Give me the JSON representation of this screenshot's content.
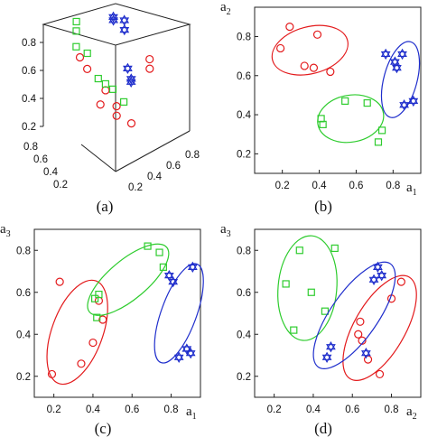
{
  "chart_data": [
    {
      "type": "scatter",
      "panel": "a",
      "projection": "3d",
      "caption": "(a)",
      "axis_ticks": {
        "vertical": [
          "0.8",
          "0.6",
          "0.4",
          "0.2"
        ],
        "left_depth": [
          "0.8",
          "0.6",
          "0.4",
          "0.2"
        ],
        "right_depth": [
          "0.2",
          "0.4",
          "0.6",
          "0.8"
        ]
      },
      "series": [
        {
          "marker": "circle",
          "color": "#e31a1c",
          "points": [
            [
              0.3,
              0.7,
              0.6
            ],
            [
              0.25,
              0.75,
              0.7
            ],
            [
              0.45,
              0.6,
              0.4
            ],
            [
              0.4,
              0.62,
              0.3
            ],
            [
              0.55,
              0.55,
              0.25
            ],
            [
              0.6,
              0.6,
              0.15
            ],
            [
              0.75,
              0.55,
              0.05
            ],
            [
              0.85,
              0.4,
              0.55
            ],
            [
              0.9,
              0.45,
              0.45
            ]
          ]
        },
        {
          "marker": "square",
          "color": "#2ecc2e",
          "points": [
            [
              0.2,
              0.75,
              0.8
            ],
            [
              0.25,
              0.8,
              0.9
            ],
            [
              0.3,
              0.85,
              0.95
            ],
            [
              0.35,
              0.75,
              0.7
            ],
            [
              0.4,
              0.65,
              0.5
            ],
            [
              0.45,
              0.6,
              0.45
            ],
            [
              0.5,
              0.55,
              0.4
            ],
            [
              0.55,
              0.45,
              0.3
            ]
          ]
        },
        {
          "marker": "hexagram",
          "color": "#1f2ecc",
          "points": [
            [
              0.75,
              0.8,
              0.85
            ],
            [
              0.8,
              0.85,
              0.8
            ],
            [
              0.85,
              0.75,
              0.8
            ],
            [
              0.9,
              0.8,
              0.7
            ],
            [
              0.7,
              0.55,
              0.5
            ],
            [
              0.65,
              0.45,
              0.45
            ],
            [
              0.6,
              0.4,
              0.45
            ]
          ]
        }
      ]
    },
    {
      "type": "scatter",
      "panel": "b",
      "caption": "(b)",
      "xlabel": "a",
      "xlabel_sub": "1",
      "ylabel": "a",
      "ylabel_sub": "2",
      "xlim": [
        0.05,
        0.95
      ],
      "ylim": [
        0.1,
        0.95
      ],
      "xticks": [
        0.2,
        0.4,
        0.6,
        0.8
      ],
      "yticks": [
        0.2,
        0.4,
        0.6,
        0.8
      ],
      "series": [
        {
          "marker": "circle",
          "color": "#e31a1c",
          "points": [
            [
              0.19,
              0.74
            ],
            [
              0.24,
              0.85
            ],
            [
              0.32,
              0.65
            ],
            [
              0.37,
              0.64
            ],
            [
              0.39,
              0.81
            ],
            [
              0.46,
              0.62
            ]
          ],
          "ellipse": {
            "cx": 0.35,
            "cy": 0.73,
            "rx": 0.21,
            "ry": 0.12,
            "angle": -15
          }
        },
        {
          "marker": "square",
          "color": "#2ecc2e",
          "points": [
            [
              0.41,
              0.38
            ],
            [
              0.42,
              0.35
            ],
            [
              0.54,
              0.47
            ],
            [
              0.66,
              0.46
            ],
            [
              0.72,
              0.26
            ],
            [
              0.74,
              0.32
            ]
          ],
          "ellipse": {
            "cx": 0.57,
            "cy": 0.38,
            "rx": 0.18,
            "ry": 0.12,
            "angle": -10
          }
        },
        {
          "marker": "hexagram",
          "color": "#1f2ecc",
          "points": [
            [
              0.76,
              0.71
            ],
            [
              0.81,
              0.67
            ],
            [
              0.82,
              0.64
            ],
            [
              0.85,
              0.71
            ],
            [
              0.86,
              0.45
            ],
            [
              0.91,
              0.47
            ]
          ],
          "ellipse": {
            "cx": 0.84,
            "cy": 0.58,
            "rx": 0.09,
            "ry": 0.2,
            "angle": 15
          }
        }
      ]
    },
    {
      "type": "scatter",
      "panel": "c",
      "caption": "(c)",
      "xlabel": "a",
      "xlabel_sub": "1",
      "ylabel": "a",
      "ylabel_sub": "3",
      "xlim": [
        0.1,
        0.95
      ],
      "ylim": [
        0.1,
        0.9
      ],
      "xticks": [
        0.2,
        0.4,
        0.6,
        0.8
      ],
      "yticks": [
        0.2,
        0.4,
        0.6,
        0.8
      ],
      "series": [
        {
          "marker": "circle",
          "color": "#e31a1c",
          "points": [
            [
              0.19,
              0.21
            ],
            [
              0.23,
              0.65
            ],
            [
              0.34,
              0.26
            ],
            [
              0.4,
              0.36
            ],
            [
              0.43,
              0.56
            ],
            [
              0.45,
              0.47
            ]
          ],
          "ellipse": {
            "cx": 0.32,
            "cy": 0.41,
            "rx": 0.13,
            "ry": 0.26,
            "angle": 20
          }
        },
        {
          "marker": "square",
          "color": "#2ecc2e",
          "points": [
            [
              0.41,
              0.57
            ],
            [
              0.42,
              0.48
            ],
            [
              0.43,
              0.59
            ],
            [
              0.68,
              0.82
            ],
            [
              0.74,
              0.79
            ],
            [
              0.76,
              0.72
            ]
          ],
          "ellipse": {
            "cx": 0.58,
            "cy": 0.66,
            "rx": 0.1,
            "ry": 0.24,
            "angle": 50
          }
        },
        {
          "marker": "hexagram",
          "color": "#1f2ecc",
          "points": [
            [
              0.79,
              0.68
            ],
            [
              0.81,
              0.65
            ],
            [
              0.84,
              0.29
            ],
            [
              0.88,
              0.33
            ],
            [
              0.9,
              0.31
            ],
            [
              0.91,
              0.72
            ]
          ],
          "ellipse": {
            "cx": 0.84,
            "cy": 0.5,
            "rx": 0.09,
            "ry": 0.25,
            "angle": 20
          }
        }
      ]
    },
    {
      "type": "scatter",
      "panel": "d",
      "caption": "(d)",
      "xlabel": "a",
      "xlabel_sub": "2",
      "ylabel": "a",
      "ylabel_sub": "3",
      "xlim": [
        0.1,
        0.95
      ],
      "ylim": [
        0.1,
        0.9
      ],
      "xticks": [
        0.2,
        0.4,
        0.6,
        0.8
      ],
      "yticks": [
        0.2,
        0.4,
        0.6,
        0.8
      ],
      "series": [
        {
          "marker": "circle",
          "color": "#e31a1c",
          "points": [
            [
              0.63,
              0.4
            ],
            [
              0.64,
              0.46
            ],
            [
              0.65,
              0.37
            ],
            [
              0.68,
              0.28
            ],
            [
              0.74,
              0.21
            ],
            [
              0.8,
              0.57
            ],
            [
              0.85,
              0.65
            ]
          ],
          "ellipse": {
            "cx": 0.74,
            "cy": 0.43,
            "rx": 0.13,
            "ry": 0.28,
            "angle": 30
          }
        },
        {
          "marker": "square",
          "color": "#2ecc2e",
          "points": [
            [
              0.26,
              0.64
            ],
            [
              0.3,
              0.42
            ],
            [
              0.33,
              0.8
            ],
            [
              0.39,
              0.6
            ],
            [
              0.46,
              0.51
            ],
            [
              0.51,
              0.81
            ]
          ],
          "ellipse": {
            "cx": 0.37,
            "cy": 0.62,
            "rx": 0.15,
            "ry": 0.25,
            "angle": 5
          }
        },
        {
          "marker": "hexagram",
          "color": "#1f2ecc",
          "points": [
            [
              0.47,
              0.29
            ],
            [
              0.49,
              0.34
            ],
            [
              0.67,
              0.31
            ],
            [
              0.71,
              0.66
            ],
            [
              0.73,
              0.72
            ],
            [
              0.75,
              0.68
            ]
          ],
          "ellipse": {
            "cx": 0.61,
            "cy": 0.49,
            "rx": 0.12,
            "ry": 0.3,
            "angle": 35
          }
        }
      ]
    }
  ]
}
